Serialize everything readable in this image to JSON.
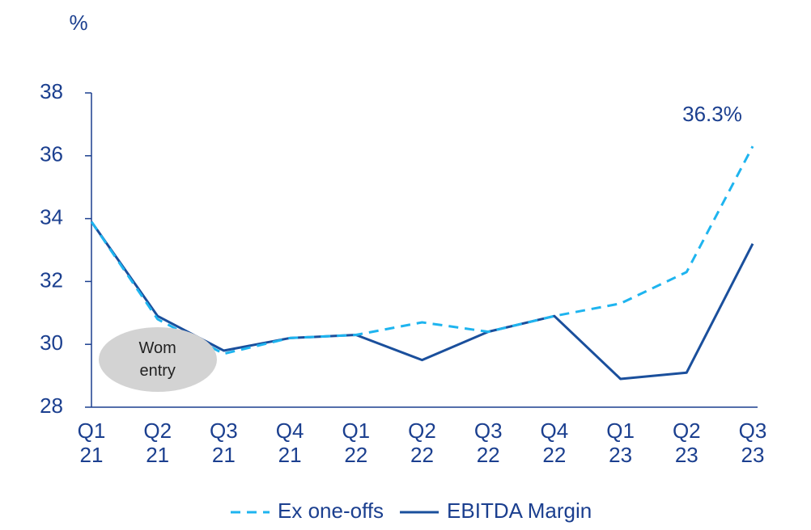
{
  "chart_data": {
    "type": "line",
    "ylabel": "%",
    "categories": [
      "Q1\n21",
      "Q2\n21",
      "Q3\n21",
      "Q4\n21",
      "Q1\n22",
      "Q2\n22",
      "Q3\n22",
      "Q4\n22",
      "Q1\n23",
      "Q2\n23",
      "Q3\n23"
    ],
    "series": [
      {
        "name": "Ex one-offs",
        "color": "#1eb4ef",
        "dashed": true,
        "values": [
          33.9,
          30.8,
          29.7,
          30.2,
          30.3,
          30.7,
          30.4,
          30.9,
          31.3,
          32.3,
          36.3
        ],
        "value_labels": [
          null,
          null,
          null,
          null,
          null,
          null,
          null,
          null,
          null,
          null,
          "36.3%"
        ]
      },
      {
        "name": "EBITDA Margin",
        "color": "#1a4f9c",
        "dashed": false,
        "values": [
          33.9,
          30.9,
          29.8,
          30.2,
          30.3,
          29.5,
          30.4,
          30.9,
          28.9,
          29.1,
          33.2
        ]
      }
    ],
    "annotations": [
      {
        "text": "Wom\nentry",
        "category": 1
      }
    ],
    "ylim": [
      28,
      38
    ],
    "yticks": [
      28,
      30,
      32,
      34,
      36,
      38
    ],
    "grid": false,
    "legend": "bottom"
  }
}
